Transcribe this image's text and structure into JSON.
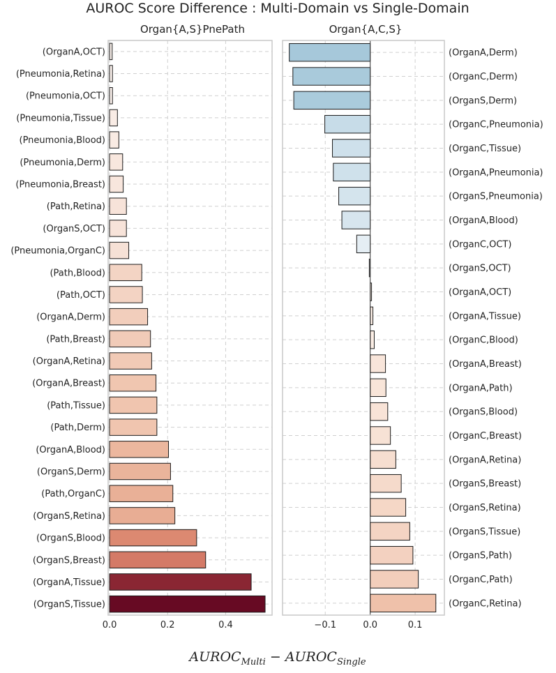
{
  "chart_data": {
    "type": "bar",
    "orientation": "horizontal",
    "title": "AUROC Score Difference : Multi-Domain vs Single-Domain",
    "xlabel": {
      "main_a": "AUROC",
      "sub_a": "Multi",
      "operator": " − ",
      "main_b": "AUROC",
      "sub_b": "Single"
    },
    "grid": true,
    "panels": [
      {
        "title": "Organ{A,S}PnePath",
        "label_side": "left",
        "colormap": "reds",
        "xlim": [
          -0.005,
          0.56
        ],
        "xticks": [
          0.0,
          0.2,
          0.4
        ],
        "xtick_labels": [
          "0.0",
          "0.2",
          "0.4"
        ],
        "categories": [
          "(OrganA,OCT)",
          "(Pneumonia,Retina)",
          "(Pneumonia,OCT)",
          "(Pneumonia,Tissue)",
          "(Pneumonia,Blood)",
          "(Pneumonia,Derm)",
          "(Pneumonia,Breast)",
          "(Path,Retina)",
          "(OrganS,OCT)",
          "(Pneumonia,OrganC)",
          "(Path,Blood)",
          "(Path,OCT)",
          "(OrganA,Derm)",
          "(Path,Breast)",
          "(OrganA,Retina)",
          "(OrganA,Breast)",
          "(Path,Tissue)",
          "(Path,Derm)",
          "(OrganA,Blood)",
          "(OrganS,Derm)",
          "(Path,OrganC)",
          "(OrganS,Retina)",
          "(OrganS,Blood)",
          "(OrganS,Breast)",
          "(OrganA,Tissue)",
          "(OrganS,Tissue)"
        ],
        "values": [
          0.009,
          0.01,
          0.01,
          0.027,
          0.032,
          0.045,
          0.047,
          0.058,
          0.058,
          0.066,
          0.111,
          0.113,
          0.131,
          0.141,
          0.145,
          0.16,
          0.163,
          0.163,
          0.203,
          0.21,
          0.218,
          0.225,
          0.3,
          0.331,
          0.488,
          0.536
        ]
      },
      {
        "title": "Organ{A,C,S}",
        "label_side": "right",
        "colormap": "diverging",
        "xlim": [
          -0.195,
          0.165
        ],
        "xticks": [
          -0.1,
          0.0,
          0.1
        ],
        "xtick_labels": [
          "−0.1",
          "0.0",
          "0.1"
        ],
        "categories": [
          "(OrganA,Derm)",
          "(OrganC,Derm)",
          "(OrganS,Derm)",
          "(OrganC,Pneumonia)",
          "(OrganC,Tissue)",
          "(OrganA,Pneumonia)",
          "(OrganS,Pneumonia)",
          "(OrganA,Blood)",
          "(OrganC,OCT)",
          "(OrganS,OCT)",
          "(OrganA,OCT)",
          "(OrganA,Tissue)",
          "(OrganC,Blood)",
          "(OrganA,Breast)",
          "(OrganA,Path)",
          "(OrganS,Blood)",
          "(OrganC,Breast)",
          "(OrganA,Retina)",
          "(OrganS,Breast)",
          "(OrganS,Retina)",
          "(OrganS,Tissue)",
          "(OrganS,Path)",
          "(OrganC,Path)",
          "(OrganC,Retina)"
        ],
        "values": [
          -0.18,
          -0.172,
          -0.17,
          -0.101,
          -0.084,
          -0.082,
          -0.07,
          -0.063,
          -0.03,
          -0.002,
          0.003,
          0.006,
          0.009,
          0.034,
          0.035,
          0.039,
          0.045,
          0.057,
          0.069,
          0.079,
          0.088,
          0.095,
          0.107,
          0.146
        ]
      }
    ]
  }
}
